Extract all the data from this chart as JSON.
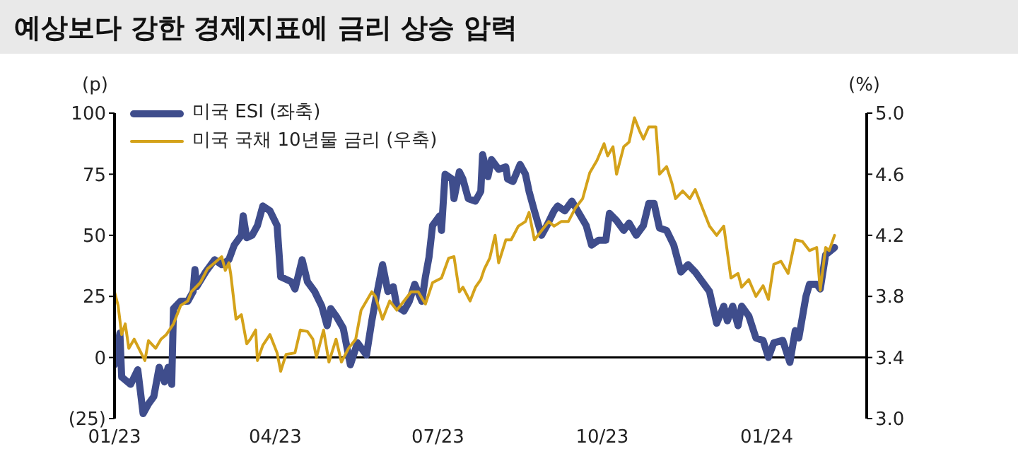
{
  "chart_data": {
    "type": "line",
    "title": "예상보다 강한 경제지표에 금리 상승 압력",
    "ylabel": "(p)",
    "y2label": "(%)",
    "legend": "top left",
    "marker": "none",
    "line_style": "solid",
    "xlim": [
      "2023-01-01",
      "2024-02-26"
    ],
    "xticks": [
      {
        "value": "2023-01-01",
        "label": "01/23"
      },
      {
        "value": "2023-04-01",
        "label": "04/23"
      },
      {
        "value": "2023-07-01",
        "label": "07/23"
      },
      {
        "value": "2023-10-01",
        "label": "10/23"
      },
      {
        "value": "2024-01-01",
        "label": "01/24"
      }
    ],
    "ylim": [
      -25,
      100
    ],
    "yticks": [
      {
        "value": -25,
        "label": "(25)"
      },
      0,
      25,
      50,
      75,
      100
    ],
    "y2lim": [
      3,
      5
    ],
    "y2ticks": [
      {
        "value": 3,
        "label": "3.0"
      },
      {
        "value": 3.4,
        "label": "3.4"
      },
      {
        "value": 3.8,
        "label": "3.8"
      },
      {
        "value": 4.2,
        "label": "4.2"
      },
      {
        "value": 4.6,
        "label": "4.6"
      },
      {
        "value": 5,
        "label": "5.0"
      }
    ],
    "ref_lines": [
      {
        "axis": "y",
        "value": 0,
        "color": "#000000"
      }
    ],
    "series": [
      {
        "name": "미국 ESI (좌축)",
        "color": "#3f4d8c",
        "x": [
          "2023-01-01",
          "2023-01-04",
          "2023-01-05",
          "2023-01-10",
          "2023-01-14",
          "2023-01-17",
          "2023-01-20",
          "2023-01-23",
          "2023-01-26",
          "2023-01-29",
          "2023-01-31",
          "2023-02-02",
          "2023-02-03",
          "2023-02-07",
          "2023-02-11",
          "2023-02-14",
          "2023-02-15",
          "2023-02-16",
          "2023-02-21",
          "2023-02-26",
          "2023-03-02",
          "2023-03-06",
          "2023-03-09",
          "2023-03-13",
          "2023-03-14",
          "2023-03-16",
          "2023-03-19",
          "2023-03-22",
          "2023-03-25",
          "2023-03-29",
          "2023-04-02",
          "2023-04-04",
          "2023-04-10",
          "2023-04-12",
          "2023-04-16",
          "2023-04-19",
          "2023-04-23",
          "2023-04-27",
          "2023-04-30",
          "2023-05-02",
          "2023-05-05",
          "2023-05-09",
          "2023-05-13",
          "2023-05-17",
          "2023-05-22",
          "2023-05-25",
          "2023-05-27",
          "2023-05-31",
          "2023-06-03",
          "2023-06-06",
          "2023-06-08",
          "2023-06-12",
          "2023-06-15",
          "2023-06-18",
          "2023-06-22",
          "2023-06-24",
          "2023-06-26",
          "2023-06-28",
          "2023-07-02",
          "2023-07-03",
          "2023-07-05",
          "2023-07-09",
          "2023-07-10",
          "2023-07-13",
          "2023-07-15",
          "2023-07-18",
          "2023-07-22",
          "2023-07-25",
          "2023-07-26",
          "2023-07-29",
          "2023-07-31",
          "2023-08-04",
          "2023-08-08",
          "2023-08-09",
          "2023-08-12",
          "2023-08-16",
          "2023-08-19",
          "2023-08-21",
          "2023-08-24",
          "2023-08-28",
          "2023-08-31",
          "2023-09-04",
          "2023-09-06",
          "2023-09-10",
          "2023-09-14",
          "2023-09-18",
          "2023-09-22",
          "2023-09-25",
          "2023-09-29",
          "2023-10-03",
          "2023-10-05",
          "2023-10-09",
          "2023-10-13",
          "2023-10-16",
          "2023-10-20",
          "2023-10-24",
          "2023-10-27",
          "2023-10-30",
          "2023-11-02",
          "2023-11-06",
          "2023-11-10",
          "2023-11-14",
          "2023-11-18",
          "2023-11-22",
          "2023-11-26",
          "2023-11-30",
          "2023-12-04",
          "2023-12-08",
          "2023-12-10",
          "2023-12-13",
          "2023-12-16",
          "2023-12-18",
          "2023-12-22",
          "2023-12-26",
          "2023-12-30",
          "2024-01-02",
          "2024-01-05",
          "2024-01-10",
          "2024-01-14",
          "2024-01-17",
          "2024-01-19",
          "2024-01-23",
          "2024-01-25",
          "2024-01-29",
          "2024-01-31",
          "2024-02-03",
          "2024-02-08"
        ],
        "values": [
          -3,
          10,
          -8,
          -11,
          -5,
          -23,
          -19,
          -16,
          -4,
          -10,
          -4,
          -11,
          20,
          23,
          23,
          27,
          36,
          29,
          35,
          40,
          38,
          40,
          46,
          50,
          58,
          49,
          50,
          54,
          62,
          60,
          54,
          33,
          31,
          28,
          40,
          31,
          27,
          21,
          13,
          20,
          17,
          12,
          -3,
          6,
          1,
          15,
          23,
          38,
          27,
          29,
          21,
          19,
          23,
          30,
          23,
          33,
          41,
          54,
          58,
          52,
          75,
          73,
          65,
          76,
          73,
          65,
          64,
          68,
          83,
          74,
          81,
          77,
          78,
          73,
          72,
          79,
          75,
          68,
          60,
          50,
          54,
          60,
          62,
          60,
          64,
          59,
          54,
          46,
          48,
          48,
          59,
          56,
          52,
          55,
          50,
          54,
          63,
          63,
          53,
          52,
          46,
          35,
          38,
          35,
          31,
          27,
          14,
          21,
          15,
          21,
          13,
          21,
          17,
          8,
          7,
          0,
          6,
          7,
          -2,
          11,
          8,
          25,
          30,
          30,
          28,
          42,
          45
        ]
      },
      {
        "name": "미국 국채 10년물 금리 (우축)",
        "color": "#d4a21a",
        "axis": "y2",
        "x": [
          "2023-01-01",
          "2023-01-03",
          "2023-01-05",
          "2023-01-07",
          "2023-01-09",
          "2023-01-12",
          "2023-01-18",
          "2023-01-20",
          "2023-01-24",
          "2023-01-27",
          "2023-01-30",
          "2023-02-03",
          "2023-02-07",
          "2023-02-11",
          "2023-02-13",
          "2023-02-18",
          "2023-02-22",
          "2023-02-26",
          "2023-03-02",
          "2023-03-04",
          "2023-03-06",
          "2023-03-07",
          "2023-03-10",
          "2023-03-13",
          "2023-03-16",
          "2023-03-18",
          "2023-03-21",
          "2023-03-22",
          "2023-03-25",
          "2023-03-29",
          "2023-04-02",
          "2023-04-04",
          "2023-04-07",
          "2023-04-12",
          "2023-04-15",
          "2023-04-19",
          "2023-04-22",
          "2023-04-24",
          "2023-04-28",
          "2023-05-01",
          "2023-05-05",
          "2023-05-08",
          "2023-05-12",
          "2023-05-16",
          "2023-05-19",
          "2023-05-25",
          "2023-05-27",
          "2023-05-31",
          "2023-06-04",
          "2023-06-08",
          "2023-06-12",
          "2023-06-16",
          "2023-06-20",
          "2023-06-24",
          "2023-06-28",
          "2023-07-03",
          "2023-07-07",
          "2023-07-10",
          "2023-07-13",
          "2023-07-15",
          "2023-07-19",
          "2023-07-22",
          "2023-07-25",
          "2023-07-27",
          "2023-07-30",
          "2023-08-02",
          "2023-08-04",
          "2023-08-08",
          "2023-08-11",
          "2023-08-15",
          "2023-08-19",
          "2023-08-21",
          "2023-08-24",
          "2023-08-28",
          "2023-09-01",
          "2023-09-04",
          "2023-09-08",
          "2023-09-12",
          "2023-09-16",
          "2023-09-20",
          "2023-09-24",
          "2023-09-28",
          "2023-10-02",
          "2023-10-04",
          "2023-10-07",
          "2023-10-09",
          "2023-10-13",
          "2023-10-16",
          "2023-10-19",
          "2023-10-22",
          "2023-10-24",
          "2023-10-27",
          "2023-10-31",
          "2023-11-02",
          "2023-11-06",
          "2023-11-09",
          "2023-11-11",
          "2023-11-15",
          "2023-11-19",
          "2023-11-22",
          "2023-11-26",
          "2023-11-30",
          "2023-12-04",
          "2023-12-08",
          "2023-12-12",
          "2023-12-16",
          "2023-12-18",
          "2023-12-22",
          "2023-12-26",
          "2023-12-30",
          "2024-01-02",
          "2024-01-05",
          "2024-01-09",
          "2024-01-13",
          "2024-01-17",
          "2024-01-21",
          "2024-01-25",
          "2024-01-29",
          "2024-01-31",
          "2024-02-03",
          "2024-02-05",
          "2024-02-08"
        ],
        "values": [
          3.83,
          3.74,
          3.55,
          3.62,
          3.46,
          3.52,
          3.38,
          3.51,
          3.46,
          3.52,
          3.55,
          3.62,
          3.74,
          3.77,
          3.83,
          3.89,
          3.98,
          4.02,
          4.06,
          3.97,
          4.02,
          3.95,
          3.65,
          3.68,
          3.49,
          3.52,
          3.58,
          3.38,
          3.48,
          3.55,
          3.43,
          3.31,
          3.42,
          3.43,
          3.58,
          3.57,
          3.52,
          3.4,
          3.58,
          3.37,
          3.52,
          3.37,
          3.46,
          3.52,
          3.71,
          3.83,
          3.8,
          3.65,
          3.77,
          3.71,
          3.77,
          3.83,
          3.83,
          3.75,
          3.89,
          3.92,
          4.05,
          4.06,
          3.83,
          3.86,
          3.77,
          3.86,
          3.91,
          3.98,
          4.05,
          4.2,
          4.02,
          4.17,
          4.17,
          4.26,
          4.29,
          4.35,
          4.17,
          4.23,
          4.29,
          4.26,
          4.29,
          4.29,
          4.38,
          4.44,
          4.61,
          4.69,
          4.8,
          4.72,
          4.78,
          4.6,
          4.78,
          4.81,
          4.97,
          4.88,
          4.83,
          4.91,
          4.91,
          4.6,
          4.65,
          4.54,
          4.44,
          4.49,
          4.44,
          4.5,
          4.38,
          4.26,
          4.2,
          4.26,
          3.92,
          3.95,
          3.86,
          3.91,
          3.8,
          3.87,
          3.78,
          4.01,
          4.03,
          3.95,
          4.17,
          4.16,
          4.1,
          4.12,
          3.84,
          4.12,
          4.1,
          4.2
        ]
      }
    ]
  }
}
